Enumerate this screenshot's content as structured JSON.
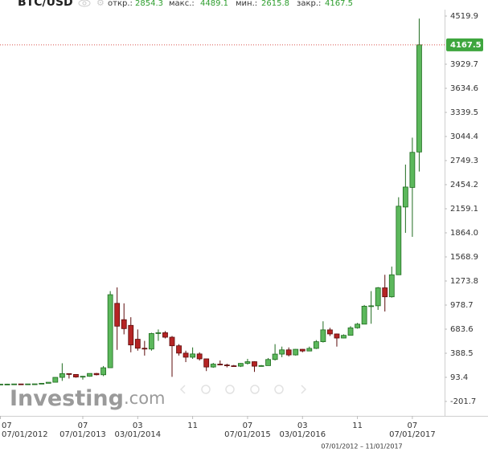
{
  "chart_data": {
    "type": "candlestick",
    "title": "BTC/USD",
    "header_labels": {
      "open": "откр.:",
      "high": "макс.:",
      "low": "мин.:",
      "close": "закр.:"
    },
    "watermark": {
      "brand": "Investing",
      "suffix": ".com"
    },
    "range": "07/01/2012 – 11/01/2017",
    "colors": {
      "up": "#5cb85c",
      "up_edge": "#1e6b1e",
      "down": "#b52424",
      "down_edge": "#5c0b0b",
      "close_line": "#d9534f"
    },
    "open": [
      6.7,
      9.4,
      10.2,
      12.4,
      11.2,
      12.6,
      13.5,
      20.4,
      33.4,
      93,
      139,
      129,
      97,
      106,
      141,
      125,
      211,
      1000,
      800,
      730,
      560,
      450,
      440,
      630,
      640,
      585,
      480,
      390,
      340,
      380,
      320,
      220,
      255,
      245,
      235,
      230,
      264,
      285,
      230,
      237,
      312,
      378,
      430,
      368,
      437,
      416,
      448,
      530,
      675,
      625,
      575,
      608,
      700,
      745,
      965,
      970,
      1190,
      1080,
      1350,
      2180,
      2420,
      2854.3
    ],
    "high": [
      9.5,
      15.4,
      12.9,
      12.8,
      12.9,
      13.8,
      21,
      33.4,
      95,
      266,
      140,
      129,
      111,
      141,
      147,
      232,
      1150,
      1195,
      1000,
      830,
      680,
      540,
      640,
      680,
      660,
      600,
      500,
      420,
      460,
      400,
      320,
      270,
      300,
      260,
      245,
      268,
      320,
      290,
      245,
      330,
      500,
      470,
      460,
      440,
      440,
      470,
      550,
      780,
      700,
      630,
      620,
      720,
      760,
      980,
      1150,
      1200,
      1350,
      1450,
      2300,
      2700,
      3030,
      4489.1
    ],
    "low": [
      6.5,
      7.1,
      10,
      10,
      10.5,
      12.3,
      13.2,
      19.6,
      33,
      50,
      79,
      89,
      65,
      101,
      117,
      108,
      210,
      430,
      620,
      400,
      420,
      360,
      420,
      540,
      570,
      100,
      360,
      280,
      320,
      300,
      170,
      210,
      240,
      215,
      225,
      220,
      250,
      160,
      225,
      236,
      300,
      340,
      350,
      360,
      400,
      415,
      440,
      520,
      600,
      470,
      570,
      605,
      690,
      745,
      750,
      920,
      900,
      1070,
      1350,
      1864,
      1815,
      2615.8
    ],
    "close": [
      9.4,
      10.2,
      12.4,
      11.2,
      12.6,
      13.5,
      20.4,
      33.4,
      93,
      139,
      129,
      97,
      106,
      141,
      125,
      211,
      1106,
      720,
      690,
      490,
      450,
      440,
      630,
      640,
      585,
      480,
      390,
      340,
      380,
      320,
      220,
      255,
      245,
      235,
      230,
      264,
      285,
      230,
      237,
      312,
      378,
      430,
      368,
      437,
      416,
      448,
      530,
      675,
      625,
      575,
      608,
      700,
      745,
      965,
      970,
      1190,
      1080,
      1350,
      2190,
      2425,
      2850,
      4167.5
    ],
    "xticks": [
      {
        "index": 0,
        "label": "07",
        "date": "07/01/2012"
      },
      {
        "index": 12,
        "label": "07",
        "date": "07/01/2013"
      },
      {
        "index": 20,
        "label": "03",
        "date": "03/01/2014"
      },
      {
        "index": 28,
        "label": "11"
      },
      {
        "index": 36,
        "label": "07",
        "date": "07/01/2015"
      },
      {
        "index": 44,
        "label": "03",
        "date": "03/01/2016"
      },
      {
        "index": 52,
        "label": "11"
      },
      {
        "index": 60,
        "label": "07",
        "date": "07/01/2017"
      }
    ],
    "ylim": [
      -349.3,
      4716.6
    ],
    "yticks": [
      -201.7,
      93.4,
      388.5,
      683.6,
      978.7,
      1273.8,
      1568.9,
      {
        "value": 1864,
        "label": "1864.0"
      },
      2159.1,
      2454.2,
      2749.3,
      3044.4,
      3339.5,
      3634.6,
      3929.7,
      4519.9
    ]
  }
}
